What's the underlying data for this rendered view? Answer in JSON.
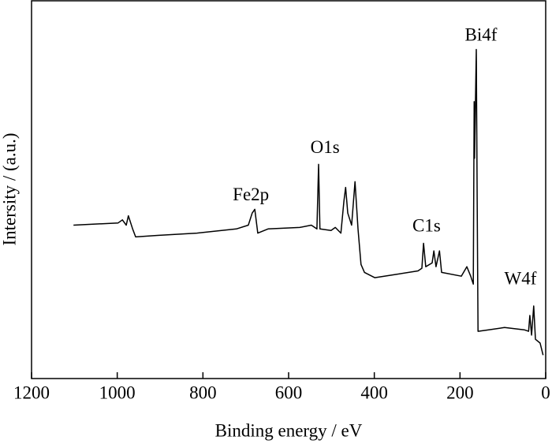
{
  "chart_data": {
    "type": "line",
    "xlabel": "Binding energy / eV",
    "ylabel": "Intersity / (a.u.)",
    "xlim": [
      1200,
      0
    ],
    "xticks": [
      1200,
      1000,
      800,
      600,
      400,
      200,
      0
    ],
    "ylim": [
      0,
      100
    ],
    "series": [
      {
        "color": "#000000",
        "x": [
          1102,
          998,
          988,
          979,
          974,
          964,
          957,
          906,
          814,
          722,
          694,
          685,
          679,
          672,
          648,
          574,
          547,
          534,
          530,
          527,
          501,
          491,
          478,
          471,
          467,
          462,
          453,
          445,
          438,
          431,
          423,
          399,
          353,
          298,
          289,
          285,
          280,
          265,
          261,
          256,
          248,
          243,
          197,
          184,
          175,
          169,
          167,
          166,
          162,
          160,
          158,
          133,
          96,
          50,
          40,
          37,
          33,
          28,
          24,
          13,
          6
        ],
        "values": [
          40.6,
          41.2,
          42,
          40.6,
          43.1,
          39.6,
          37.5,
          37.9,
          38.5,
          39.6,
          40.6,
          43.8,
          44.8,
          38.5,
          39.6,
          40,
          40.6,
          39.6,
          56.7,
          39.6,
          39.2,
          40,
          38.5,
          46.9,
          50.6,
          43.8,
          40.6,
          52.1,
          39.6,
          30.2,
          28.1,
          26.7,
          27.5,
          28.5,
          29.2,
          35.8,
          29.6,
          30.6,
          33.8,
          29.6,
          33.8,
          28.1,
          27.1,
          29.6,
          27.1,
          25,
          73.3,
          58.3,
          87.1,
          47.9,
          12.5,
          12.9,
          13.5,
          12.9,
          12.5,
          16.7,
          11.5,
          19.2,
          10.4,
          9.4,
          6.2
        ]
      }
    ],
    "annotations": [
      {
        "text": "Bi4f",
        "x": 151,
        "y": 90.6
      },
      {
        "text": "O1s",
        "x": 515,
        "y": 60.8
      },
      {
        "text": "Fe2p",
        "x": 688,
        "y": 48.3
      },
      {
        "text": "C1s",
        "x": 278,
        "y": 40
      },
      {
        "text": "W4f",
        "x": 59,
        "y": 26
      }
    ]
  }
}
